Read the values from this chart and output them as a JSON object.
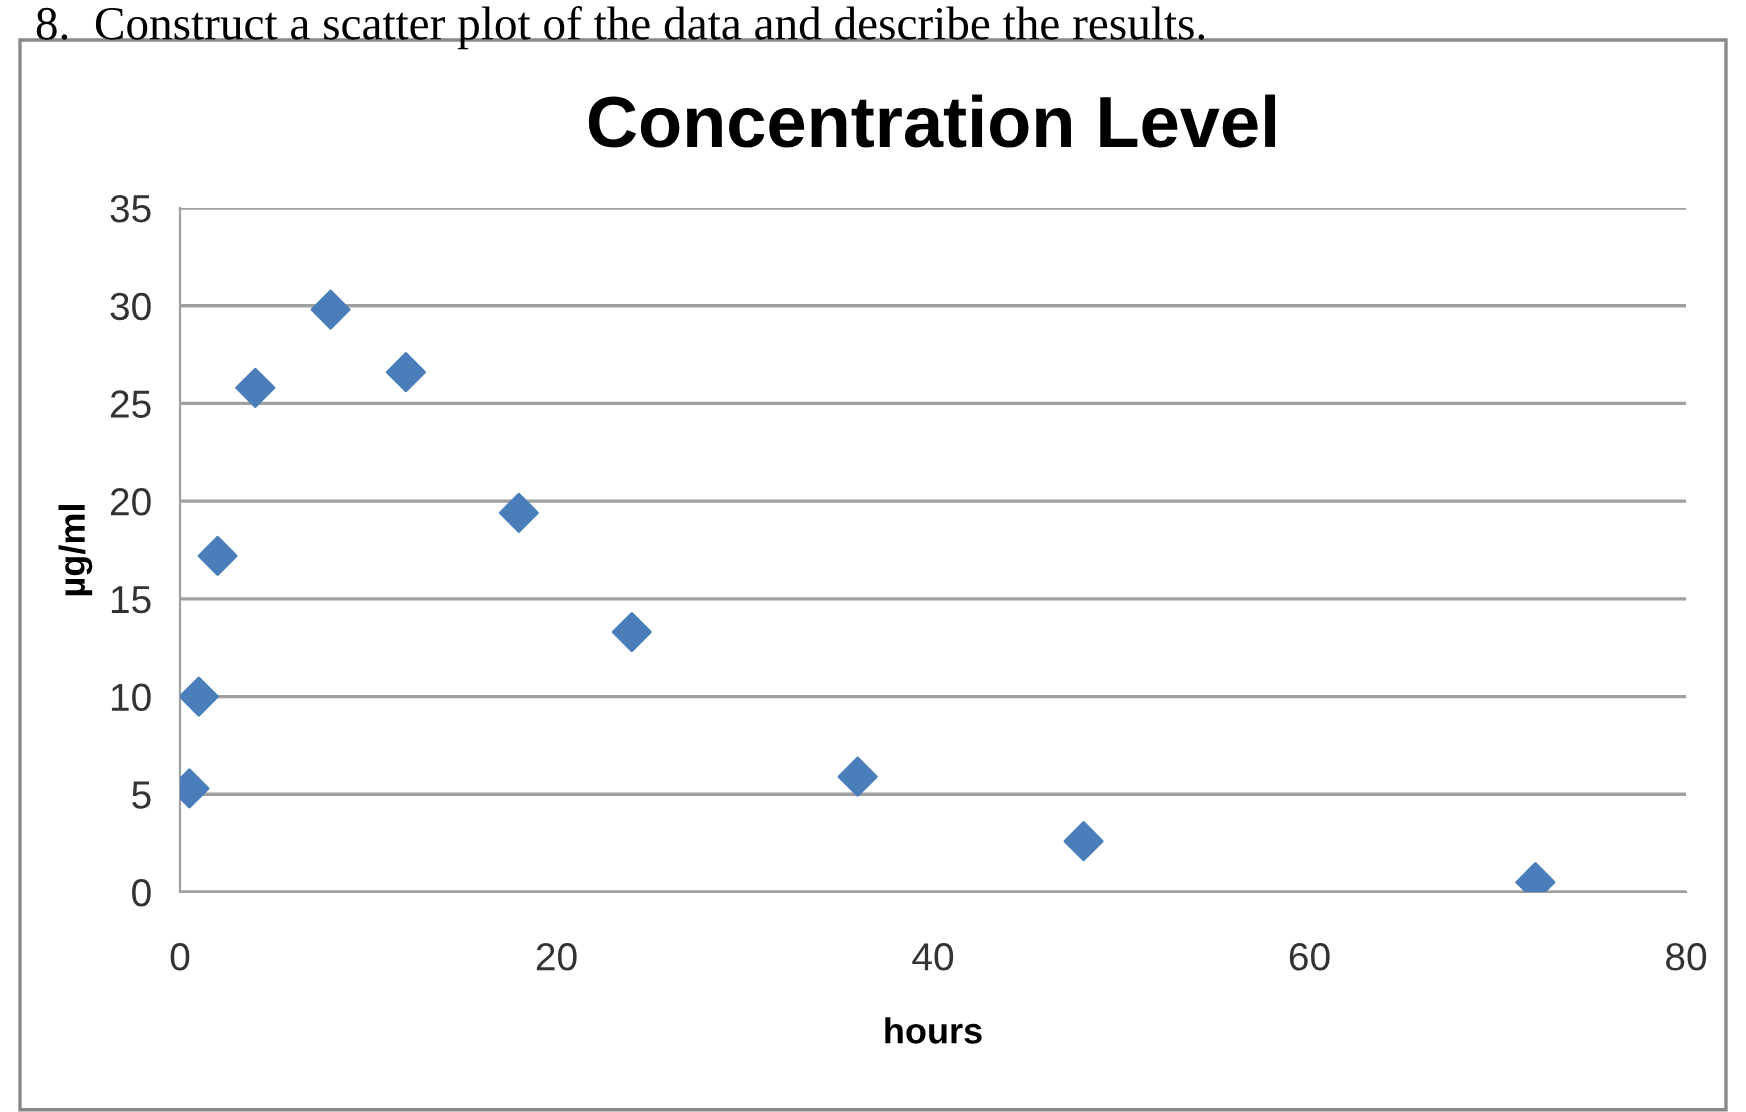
{
  "chart_data": {
    "type": "scatter",
    "title": "Concentration Level",
    "xlabel": "hours",
    "ylabel": "µg/ml",
    "annotations": [
      "8.  Construct a scatter plot of the data and describe the results."
    ],
    "x": [
      0.5,
      1,
      2,
      4,
      8,
      12,
      18,
      24,
      36,
      48,
      72
    ],
    "series": [
      {
        "color": "#4a7ebb",
        "values": [
          5.3,
          10,
          17.2,
          25.8,
          29.8,
          26.6,
          19.4,
          13.3,
          5.9,
          2.6,
          0.5
        ]
      }
    ],
    "xlim": [
      0,
      80
    ],
    "xticks": [
      0,
      20,
      40,
      60,
      80
    ],
    "ylim": [
      0,
      35
    ],
    "yticks": [
      0,
      5,
      10,
      15,
      20,
      25,
      30,
      35
    ],
    "grid": "y",
    "marker": "diamond",
    "legend": false
  }
}
